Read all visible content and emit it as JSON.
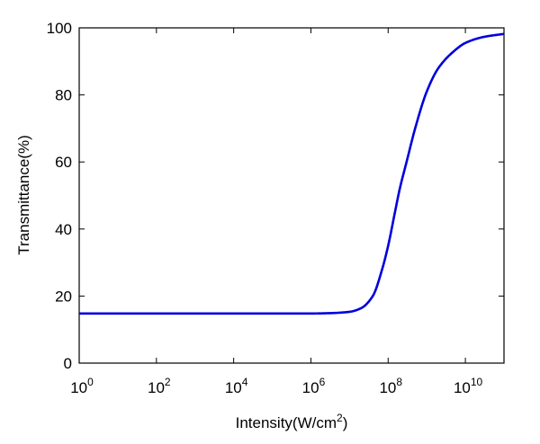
{
  "chart_data": {
    "type": "line",
    "title": "",
    "xlabel": "Intensity(W/cm",
    "xlabel_sup": "2",
    "xlabel_close": ")",
    "ylabel": "Transmittance(%)",
    "xscale": "log",
    "xlim": [
      1,
      100000000000
    ],
    "ylim": [
      0,
      100
    ],
    "grid": false,
    "x_ticks": [
      {
        "base": "10",
        "exp": "0"
      },
      {
        "base": "10",
        "exp": "2"
      },
      {
        "base": "10",
        "exp": "4"
      },
      {
        "base": "10",
        "exp": "6"
      },
      {
        "base": "10",
        "exp": "8"
      },
      {
        "base": "10",
        "exp": "10"
      }
    ],
    "y_ticks": [
      "0",
      "20",
      "40",
      "60",
      "80",
      "100"
    ],
    "series": [
      {
        "color": "#0000dd",
        "x": [
          1,
          10,
          100,
          1000,
          10000,
          100000,
          1000000,
          3000000,
          10000000,
          20000000,
          40000000,
          70000000,
          100000000,
          150000000,
          200000000,
          300000000,
          500000000,
          1000000000,
          2000000000,
          5000000000,
          10000000000,
          30000000000,
          100000000000
        ],
        "y": [
          14.8,
          14.8,
          14.8,
          14.8,
          14.8,
          14.8,
          14.8,
          14.9,
          15.3,
          16.4,
          20.0,
          28.0,
          35.0,
          45.0,
          52.0,
          60.0,
          70.0,
          81.0,
          88.0,
          93.0,
          95.5,
          97.3,
          98.2
        ]
      }
    ]
  }
}
